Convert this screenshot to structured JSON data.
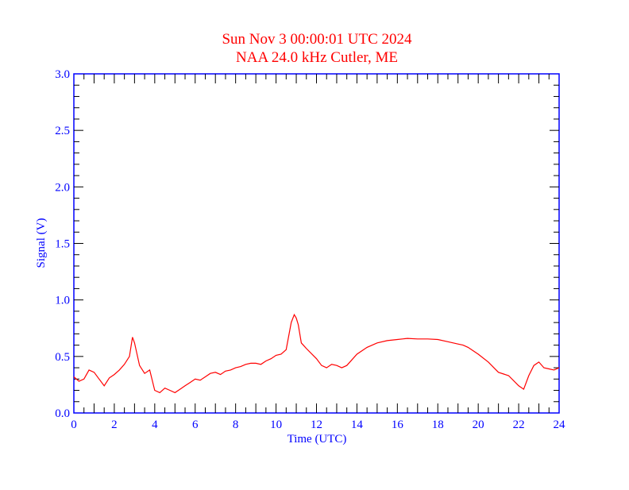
{
  "chart_data": {
    "type": "line",
    "title": "Sun Nov 3 00:00:01 UTC 2024",
    "subtitle": "NAA 24.0 kHz Cutler, ME",
    "xlabel": "Time (UTC)",
    "ylabel": "Signal (V)",
    "xlim": [
      0,
      24
    ],
    "ylim": [
      0,
      3.0
    ],
    "xticks": [
      "0",
      "2",
      "4",
      "6",
      "8",
      "10",
      "12",
      "14",
      "16",
      "18",
      "20",
      "22",
      "24"
    ],
    "yticks": [
      "0.0",
      "0.5",
      "1.0",
      "1.5",
      "2.0",
      "2.5",
      "3.0"
    ],
    "grid": false,
    "colors": {
      "axis": "#0000ff",
      "title": "#ff0000",
      "line": "#ff0000"
    },
    "series": [
      {
        "name": "Signal",
        "x": [
          0,
          0.25,
          0.5,
          0.75,
          1.0,
          1.25,
          1.5,
          1.75,
          2.0,
          2.25,
          2.5,
          2.75,
          2.9,
          3.0,
          3.25,
          3.5,
          3.75,
          4.0,
          4.25,
          4.5,
          4.75,
          5.0,
          5.25,
          5.5,
          5.75,
          6.0,
          6.25,
          6.5,
          6.75,
          7.0,
          7.25,
          7.5,
          7.75,
          8.0,
          8.25,
          8.5,
          8.75,
          9.0,
          9.25,
          9.5,
          9.75,
          10.0,
          10.25,
          10.5,
          10.75,
          10.9,
          11.0,
          11.1,
          11.25,
          11.5,
          12.0,
          12.25,
          12.5,
          12.75,
          13.0,
          13.25,
          13.5,
          14.0,
          14.5,
          15.0,
          15.5,
          16.0,
          16.5,
          17.0,
          17.5,
          18.0,
          18.5,
          19.0,
          19.25,
          19.5,
          20.0,
          20.5,
          21.0,
          21.5,
          22.0,
          22.25,
          22.5,
          22.75,
          23.0,
          23.25,
          23.5,
          23.75,
          24.0
        ],
        "y": [
          0.32,
          0.28,
          0.3,
          0.38,
          0.36,
          0.3,
          0.24,
          0.31,
          0.34,
          0.38,
          0.43,
          0.5,
          0.67,
          0.62,
          0.42,
          0.35,
          0.38,
          0.2,
          0.18,
          0.22,
          0.2,
          0.18,
          0.21,
          0.24,
          0.27,
          0.3,
          0.29,
          0.32,
          0.35,
          0.36,
          0.34,
          0.37,
          0.38,
          0.4,
          0.41,
          0.43,
          0.44,
          0.44,
          0.43,
          0.46,
          0.48,
          0.51,
          0.52,
          0.56,
          0.8,
          0.87,
          0.84,
          0.78,
          0.62,
          0.57,
          0.48,
          0.42,
          0.4,
          0.43,
          0.42,
          0.4,
          0.42,
          0.52,
          0.58,
          0.62,
          0.64,
          0.65,
          0.66,
          0.655,
          0.655,
          0.65,
          0.63,
          0.61,
          0.6,
          0.58,
          0.52,
          0.45,
          0.36,
          0.33,
          0.24,
          0.21,
          0.33,
          0.42,
          0.45,
          0.4,
          0.39,
          0.38,
          0.4
        ]
      }
    ]
  }
}
